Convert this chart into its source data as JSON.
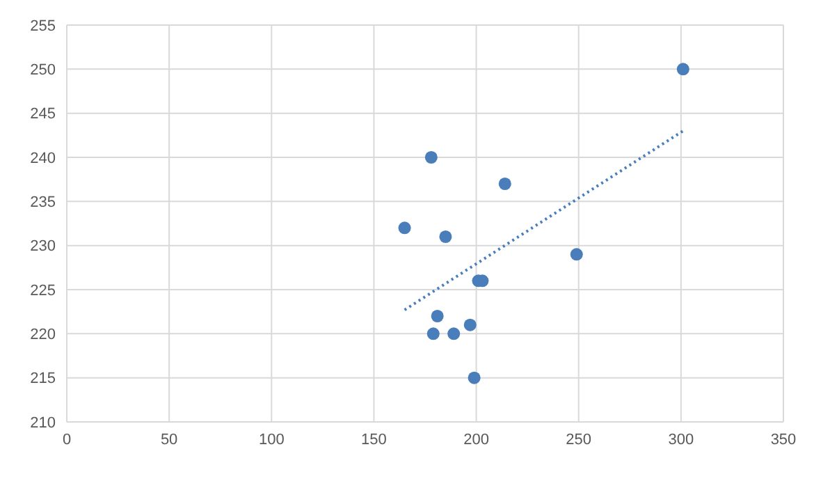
{
  "chart_data": {
    "type": "scatter",
    "xlim": [
      0,
      350
    ],
    "xticks": [
      0,
      50,
      100,
      150,
      200,
      250,
      300,
      350
    ],
    "ylim": [
      210,
      255
    ],
    "yticks": [
      210,
      215,
      220,
      225,
      230,
      235,
      240,
      245,
      250,
      255
    ],
    "grid": true,
    "legend": false,
    "marker": "circle",
    "series": [
      {
        "color": "#4a7ebb",
        "x": [
          301,
          178,
          165,
          185,
          214,
          201,
          203,
          181,
          179,
          189,
          197,
          199,
          249
        ],
        "values": [
          250,
          240,
          232,
          231,
          237,
          226,
          226,
          222,
          220,
          220,
          221,
          215,
          229
        ]
      },
      {
        "type": "line",
        "color": "#4a7ebb",
        "line_style": "dotted",
        "marker": "none",
        "x": [
          165,
          301
        ],
        "values": [
          222.7,
          243.0
        ]
      }
    ]
  }
}
